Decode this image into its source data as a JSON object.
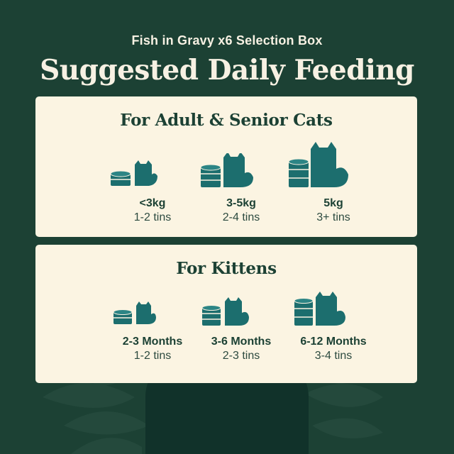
{
  "header": {
    "subtitle": "Fish in Gravy x6 Selection Box",
    "title": "Suggested Daily Feeding"
  },
  "adult_section": {
    "title": "For Adult & Senior Cats",
    "items": [
      {
        "weight": "<3kg",
        "amount": "1-2 tins"
      },
      {
        "weight": "3-5kg",
        "amount": "2-4 tins"
      },
      {
        "weight": "5kg",
        "amount": "3+ tins"
      }
    ]
  },
  "kitten_section": {
    "title": "For Kittens",
    "items": [
      {
        "age": "2-3 Months",
        "amount": "1-2 tins"
      },
      {
        "age": "3-6 Months",
        "amount": "2-3 tins"
      },
      {
        "age": "6-12 Months",
        "amount": "3-4 tins"
      }
    ]
  },
  "colors": {
    "background": "#1c4134",
    "card": "#fbf4e2",
    "teal": "#1c6e6e",
    "text_dark": "#1c4134"
  }
}
